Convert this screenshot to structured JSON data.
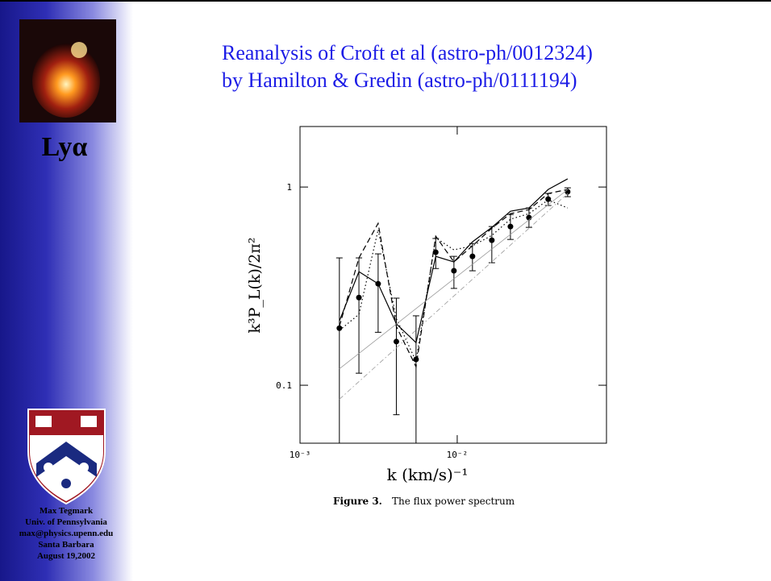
{
  "slide": {
    "title_lines": [
      "Reanalysis of Croft et al (astro-ph/0012324)",
      "by Hamilton & Gredin (astro-ph/0111194)"
    ],
    "sidebar_label": "Lyα",
    "footer_lines": [
      "Max Tegmark",
      "Univ. of Pennsylvania",
      "max@physics.upenn.edu",
      "Santa Barbara",
      "August 19,2002"
    ],
    "caption_label": "Figure 3.",
    "caption_text": "The flux power spectrum"
  },
  "chart_data": {
    "type": "line",
    "xlabel": "k (km/s)⁻¹",
    "ylabel": "k³P_L(k)/2π²",
    "xscale": "log",
    "yscale": "log",
    "xlim": [
      0.001,
      0.089
    ],
    "ylim": [
      0.051,
      2.02
    ],
    "xticks": [
      {
        "value": 0.001,
        "label": "10⁻³"
      },
      {
        "value": 0.01,
        "label": "10⁻²"
      }
    ],
    "yticks": [
      {
        "value": 0.1,
        "label": "0.1"
      },
      1
    ],
    "series": [
      {
        "style": "points",
        "color": "#000000",
        "x": [
          0.00178,
          0.00237,
          0.00314,
          0.0041,
          0.00547,
          0.0073,
          0.00953,
          0.0125,
          0.0166,
          0.0218,
          0.0286,
          0.0379,
          0.0504
        ],
        "values": [
          0.194,
          0.277,
          0.325,
          0.166,
          0.135,
          0.469,
          0.378,
          0.447,
          0.539,
          0.632,
          0.701,
          0.869,
          0.946
        ],
        "lower": [
          0.051,
          0.115,
          0.185,
          0.071,
          0.051,
          0.388,
          0.308,
          0.378,
          0.415,
          0.544,
          0.626,
          0.807,
          0.894
        ],
        "upper": [
          0.439,
          0.439,
          0.46,
          0.275,
          0.224,
          0.55,
          0.447,
          0.519,
          0.632,
          0.727,
          0.784,
          0.928,
          0.991
        ]
      },
      {
        "style": "solid",
        "color": "#000000",
        "x": [
          0.00178,
          0.00237,
          0.00314,
          0.0041,
          0.00547,
          0.0073,
          0.00953,
          0.0125,
          0.0166,
          0.0218,
          0.0286,
          0.0379,
          0.0504
        ],
        "values": [
          0.211,
          0.374,
          0.325,
          0.204,
          0.164,
          0.447,
          0.419,
          0.529,
          0.626,
          0.755,
          0.784,
          0.972,
          1.1
        ]
      },
      {
        "style": "dashed",
        "color": "#000000",
        "x": [
          0.00178,
          0.00237,
          0.00314,
          0.0041,
          0.00547,
          0.0073,
          0.00953,
          0.0125,
          0.0166,
          0.0218,
          0.0286,
          0.0379,
          0.0504
        ],
        "values": [
          0.198,
          0.439,
          0.656,
          0.198,
          0.124,
          0.565,
          0.419,
          0.505,
          0.62,
          0.734,
          0.769,
          0.928,
          0.972
        ]
      },
      {
        "style": "dotted",
        "color": "#000000",
        "x": [
          0.00178,
          0.00237,
          0.00314,
          0.0041,
          0.00547,
          0.0073,
          0.00953,
          0.0125,
          0.0166,
          0.0218,
          0.0286,
          0.0379,
          0.0504
        ],
        "values": [
          0.189,
          0.228,
          0.609,
          0.217,
          0.132,
          0.554,
          0.482,
          0.505,
          0.57,
          0.688,
          0.734,
          0.861,
          0.784
        ]
      },
      {
        "style": "thin",
        "color": "#999999",
        "x": [
          0.00178,
          0.0504
        ],
        "values": [
          0.121,
          0.972
        ]
      },
      {
        "style": "dashdot",
        "color": "#999999",
        "x": [
          0.00178,
          0.0504
        ],
        "values": [
          0.085,
          0.928
        ]
      }
    ]
  }
}
